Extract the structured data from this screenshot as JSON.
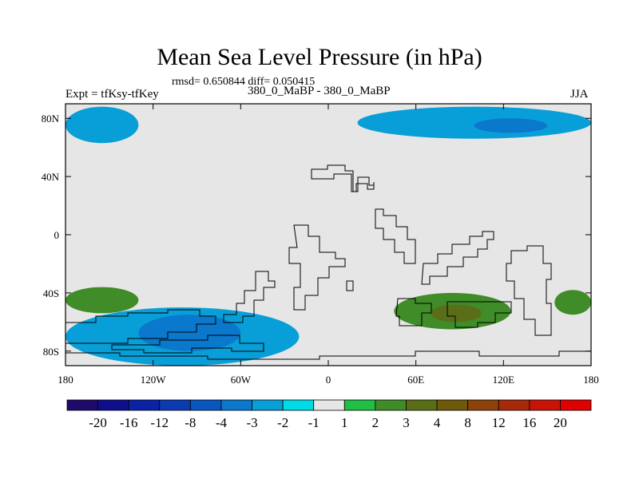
{
  "chart_data": {
    "type": "heatmap",
    "title": "Mean Sea Level Pressure (in hPa)",
    "stats_text": "rmsd= 0.650844 diff= 0.050415",
    "left_label": "Expt = tfKsy-tfKey",
    "center_label": "380_0_MaBP - 380_0_MaBP",
    "right_label": "JJA",
    "x_ticks": [
      "180",
      "120W",
      "60W",
      "0",
      "60E",
      "120E",
      "180"
    ],
    "x_tick_values": [
      -180,
      -120,
      -60,
      0,
      60,
      120,
      180
    ],
    "y_ticks": [
      "80N",
      "40N",
      "0",
      "40S",
      "80S"
    ],
    "y_tick_values": [
      80,
      40,
      0,
      -40,
      -80
    ],
    "xlim": [
      -180,
      180
    ],
    "ylim": [
      -90,
      90
    ],
    "colorbar": {
      "labels": [
        "-20",
        "-16",
        "-12",
        "-8",
        "-4",
        "-3",
        "-2",
        "-1",
        "1",
        "2",
        "3",
        "4",
        "8",
        "12",
        "16",
        "20"
      ],
      "colors": [
        "#1f0a6b",
        "#0e0f8c",
        "#0b22a6",
        "#0a3bb3",
        "#0a55c0",
        "#0a78cc",
        "#089fd8",
        "#00dbe6",
        "#e6e6e6",
        "#20bf45",
        "#3f8c28",
        "#5a6e18",
        "#6e5a0a",
        "#8c420a",
        "#a8280a",
        "#c81408",
        "#e00000"
      ]
    },
    "regions": [
      {
        "name": "arctic-atlantic-low",
        "level": "-2",
        "lon": [
          -180,
          -130
        ],
        "lat": [
          63,
          88
        ]
      },
      {
        "name": "arctic-siberia-low",
        "level": "-2",
        "lon": [
          20,
          180
        ],
        "lat": [
          66,
          88
        ]
      },
      {
        "name": "arctic-siberia-core",
        "level": "-3",
        "lon": [
          100,
          150
        ],
        "lat": [
          70,
          80
        ]
      },
      {
        "name": "southern-pacific-low",
        "level": "-2",
        "lon": [
          -180,
          -20
        ],
        "lat": [
          -90,
          -50
        ]
      },
      {
        "name": "southern-pacific-core",
        "level": "-3",
        "lon": [
          -130,
          -60
        ],
        "lat": [
          -80,
          -55
        ]
      },
      {
        "name": "south-pacific-high",
        "level": "2",
        "lon": [
          -180,
          -130
        ],
        "lat": [
          -54,
          -36
        ]
      },
      {
        "name": "indian-ocean-high",
        "level": "2",
        "lon": [
          45,
          125
        ],
        "lat": [
          -65,
          -40
        ]
      },
      {
        "name": "indian-ocean-core",
        "level": "3",
        "lon": [
          70,
          105
        ],
        "lat": [
          -60,
          -48
        ]
      },
      {
        "name": "southwest-pacific-high",
        "level": "2",
        "lon": [
          155,
          180
        ],
        "lat": [
          -55,
          -38
        ]
      }
    ]
  }
}
